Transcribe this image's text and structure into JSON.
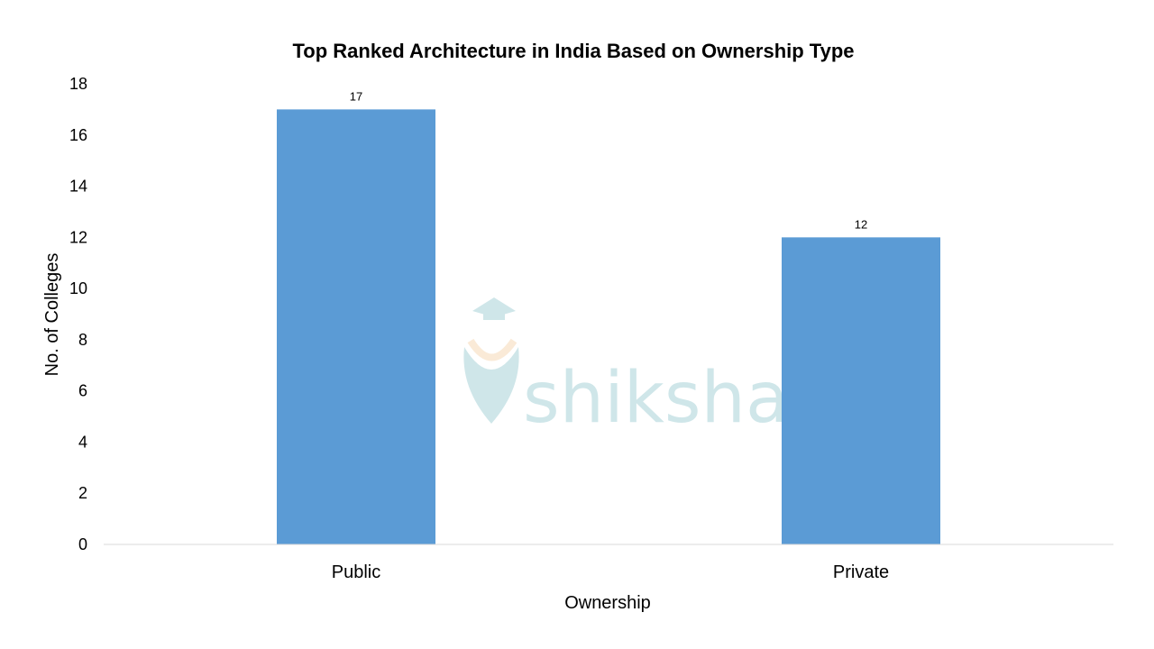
{
  "watermark": "shiksha",
  "chart_data": {
    "type": "bar",
    "title": "Top Ranked Architecture in India Based on Ownership Type",
    "xlabel": "Ownership",
    "ylabel": "No. of Colleges",
    "categories": [
      "Public",
      "Private"
    ],
    "values": [
      17,
      12
    ],
    "data_labels": [
      "17",
      "12"
    ],
    "ylim": [
      0,
      18
    ],
    "yticks": [
      "0",
      "2",
      "4",
      "6",
      "8",
      "10",
      "12",
      "14",
      "16",
      "18"
    ],
    "grid": false,
    "legend": "none",
    "bar_color": "#5B9BD5"
  }
}
